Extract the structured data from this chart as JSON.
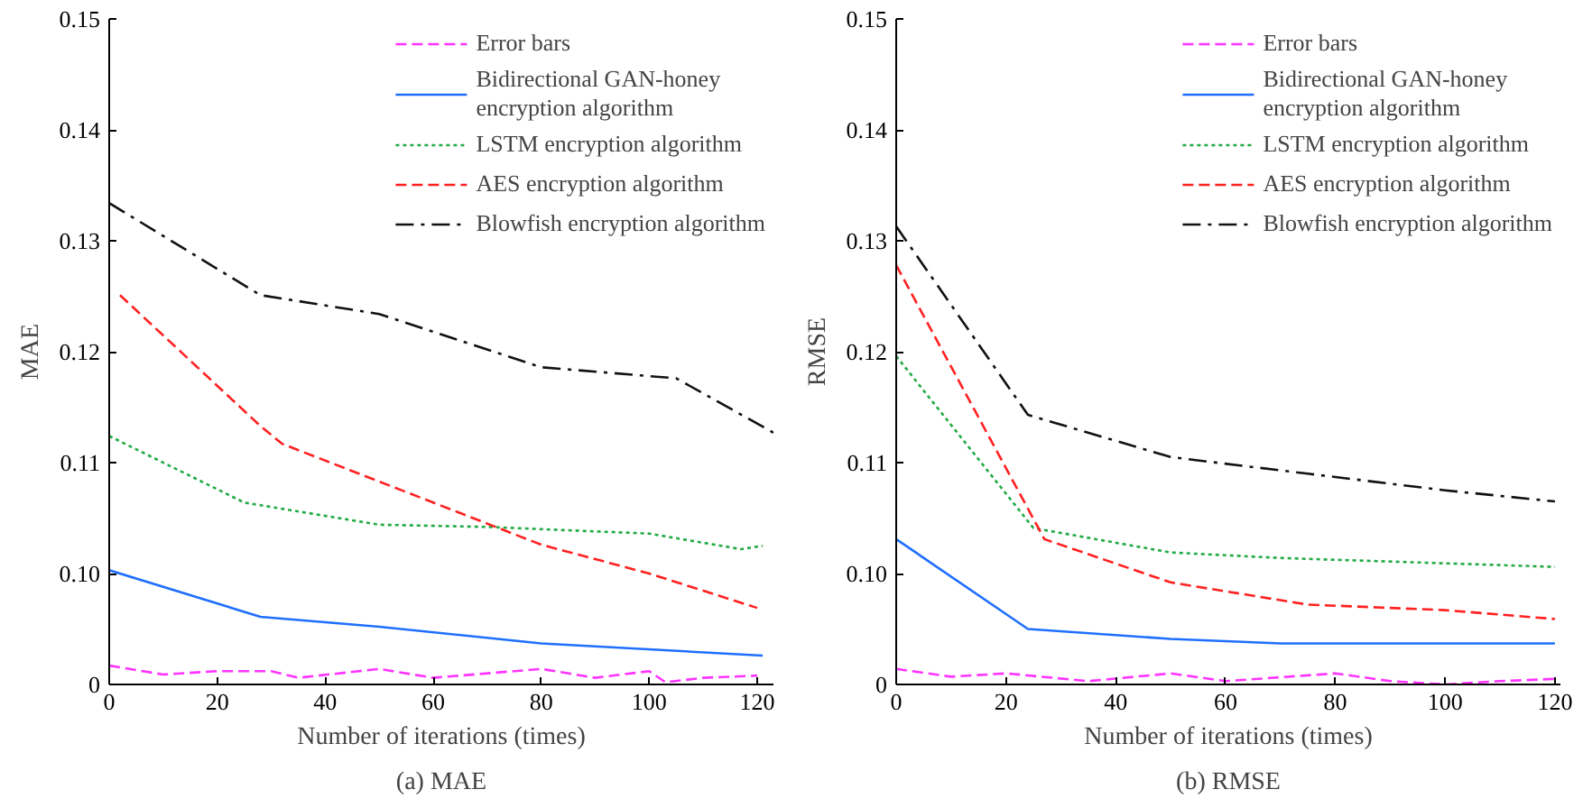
{
  "chart_data": [
    {
      "type": "line",
      "title": "(a) MAE",
      "xlabel": "Number of iterations (times)",
      "ylabel": "MAE",
      "xlim": [
        0,
        123
      ],
      "ylim": [
        0.09,
        0.15
      ],
      "xticks": [
        0,
        20,
        40,
        60,
        80,
        100,
        120
      ],
      "yticks": [
        {
          "value": 0.09,
          "label": "0"
        },
        "0.10",
        0.11,
        0.12,
        0.13,
        0.14,
        0.15
      ],
      "grid": false,
      "legend": "top right",
      "marker": "none",
      "series": [
        {
          "name": "Error bars",
          "color": "#ff33ff",
          "line_style": "dashed",
          "x": [
            0,
            10,
            20,
            30,
            35,
            50,
            60,
            80,
            90,
            100,
            103,
            110,
            120
          ],
          "values": [
            0.0917,
            0.0909,
            0.0912,
            0.0912,
            0.0906,
            0.0914,
            0.0906,
            0.0914,
            0.0906,
            0.0912,
            0.0902,
            0.0906,
            0.0908
          ]
        },
        {
          "name": "Bidirectional GAN-honey encryption algorithm",
          "color": "#1f6fff",
          "line_style": "solid",
          "x": [
            0,
            28,
            50,
            80,
            121
          ],
          "values": [
            0.1003,
            0.0961,
            0.0952,
            0.0937,
            0.0926
          ]
        },
        {
          "name": "LSTM encryption algorithm",
          "color": "#22aa44",
          "line_style": "dotted",
          "x": [
            0,
            25,
            50,
            70,
            80,
            100,
            117,
            121
          ],
          "values": [
            0.1124,
            0.1064,
            0.1044,
            0.1042,
            0.104,
            0.1036,
            0.1022,
            0.1025
          ]
        },
        {
          "name": "AES encryption algorithm",
          "color": "#ff2020",
          "line_style": "dashed",
          "x": [
            2,
            28,
            32,
            60,
            80,
            100,
            120
          ],
          "values": [
            0.1251,
            0.1133,
            0.1117,
            0.1064,
            0.1026,
            0.1,
            0.0969
          ]
        },
        {
          "name": "Blowfish encryption algorithm",
          "color": "#111111",
          "line_style": "dashdot",
          "x": [
            0,
            28,
            50,
            80,
            105,
            123
          ],
          "values": [
            0.1334,
            0.1251,
            0.1234,
            0.1186,
            0.1176,
            0.1127
          ]
        }
      ]
    },
    {
      "type": "line",
      "title": "(b) RMSE",
      "xlabel": "Number of iterations (times)",
      "ylabel": "RMSE",
      "xlim": [
        0,
        121
      ],
      "ylim": [
        0.09,
        0.15
      ],
      "xticks": [
        0,
        20,
        40,
        60,
        80,
        100,
        120
      ],
      "yticks": [
        {
          "value": 0.09,
          "label": "0"
        },
        "0.10",
        0.11,
        0.12,
        0.13,
        0.14,
        0.15
      ],
      "grid": false,
      "legend": "top right",
      "marker": "none",
      "series": [
        {
          "name": "Error bars",
          "color": "#ff33ff",
          "line_style": "dashed",
          "x": [
            0,
            10,
            20,
            35,
            50,
            60,
            80,
            90,
            100,
            110,
            120
          ],
          "values": [
            0.0914,
            0.0907,
            0.091,
            0.0903,
            0.091,
            0.0903,
            0.091,
            0.0903,
            0.09,
            0.0903,
            0.0905
          ]
        },
        {
          "name": "Bidirectional GAN-honey encryption algorithm",
          "color": "#1f6fff",
          "line_style": "solid",
          "x": [
            0,
            24,
            50,
            70,
            120
          ],
          "values": [
            0.1031,
            0.095,
            0.0941,
            0.0937,
            0.0937
          ]
        },
        {
          "name": "LSTM encryption algorithm",
          "color": "#22aa44",
          "line_style": "dotted",
          "x": [
            0,
            25,
            50,
            70,
            120
          ],
          "values": [
            0.1196,
            0.1041,
            0.1019,
            0.1014,
            0.1006
          ]
        },
        {
          "name": "AES encryption algorithm",
          "color": "#ff2020",
          "line_style": "dashed",
          "x": [
            0,
            27,
            50,
            75,
            100,
            120
          ],
          "values": [
            0.1278,
            0.1031,
            0.0992,
            0.0972,
            0.0967,
            0.0959
          ]
        },
        {
          "name": "Blowfish encryption algorithm",
          "color": "#111111",
          "line_style": "dashdot",
          "x": [
            0,
            24,
            50,
            75,
            100,
            120
          ],
          "values": [
            0.1313,
            0.1143,
            0.1105,
            0.109,
            0.1075,
            0.1065
          ]
        }
      ]
    }
  ]
}
